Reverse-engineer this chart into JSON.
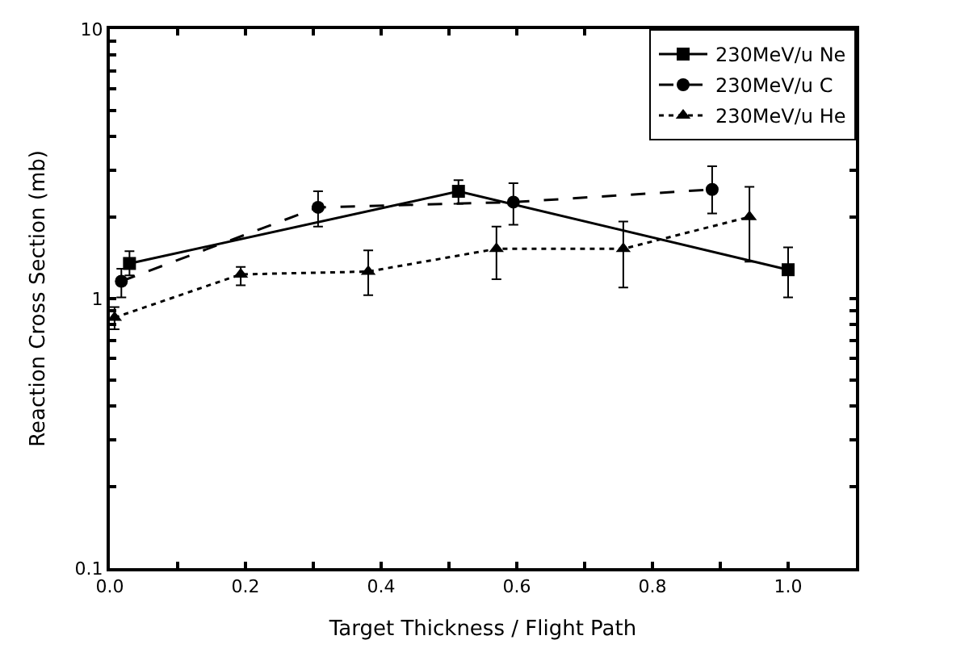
{
  "chart_data": {
    "type": "line",
    "xlabel": "Target Thickness / Flight Path",
    "ylabel": "Reaction Cross Section (mb)",
    "log": "y",
    "legend": "top right",
    "xlim": [
      0,
      1.1
    ],
    "ylim": [
      0.1,
      10
    ],
    "xticks": [
      {
        "value": 0,
        "label": "0.0"
      },
      {
        "value": 0.1,
        "label": null
      },
      {
        "value": 0.2,
        "label": "0.2"
      },
      {
        "value": 0.3,
        "label": null
      },
      {
        "value": 0.4,
        "label": "0.4"
      },
      {
        "value": 0.5,
        "label": null
      },
      {
        "value": 0.6,
        "label": "0.6"
      },
      {
        "value": 0.7,
        "label": null
      },
      {
        "value": 0.8,
        "label": "0.8"
      },
      {
        "value": 0.9,
        "label": null
      },
      {
        "value": 1.0,
        "label": "1.0"
      },
      {
        "value": 1.1,
        "label": null
      }
    ],
    "yticks": [
      0.1,
      {
        "value": 0.2,
        "label": null
      },
      {
        "value": 0.3,
        "label": null
      },
      {
        "value": 0.4,
        "label": null
      },
      {
        "value": 0.5,
        "label": null
      },
      {
        "value": 0.6,
        "label": null
      },
      {
        "value": 0.7,
        "label": null
      },
      {
        "value": 0.8,
        "label": null
      },
      {
        "value": 0.9,
        "label": null
      },
      1,
      {
        "value": 2,
        "label": null
      },
      {
        "value": 3,
        "label": null
      },
      {
        "value": 4,
        "label": null
      },
      {
        "value": 5,
        "label": null
      },
      {
        "value": 6,
        "label": null
      },
      {
        "value": 7,
        "label": null
      },
      {
        "value": 8,
        "label": null
      },
      {
        "value": 9,
        "label": null
      },
      10
    ],
    "series": [
      {
        "name": "230MeV/u Ne",
        "color": "#000000",
        "marker": "square",
        "line_style": "solid",
        "x": [
          0.029,
          0.514,
          1.0
        ],
        "values": [
          1.35,
          2.5,
          1.28
        ],
        "errors": [
          [
            1.22,
            1.5
          ],
          [
            2.25,
            2.75
          ],
          [
            1.01,
            1.55
          ]
        ]
      },
      {
        "name": "230MeV/u C",
        "color": "#000000",
        "marker": "circle",
        "line_style": "dashed",
        "x": [
          0.017,
          0.307,
          0.595,
          0.888
        ],
        "values": [
          1.16,
          2.18,
          2.28,
          2.54
        ],
        "errors": [
          [
            1.01,
            1.29
          ],
          [
            1.85,
            2.5
          ],
          [
            1.88,
            2.68
          ],
          [
            2.07,
            3.1
          ]
        ]
      },
      {
        "name": "230MeV/u He",
        "color": "#000000",
        "marker": "triangle",
        "line_style": "dotted",
        "x": [
          0.007,
          0.193,
          0.381,
          0.57,
          0.757,
          0.943
        ],
        "values": [
          0.85,
          1.23,
          1.26,
          1.53,
          1.53,
          2.01
        ],
        "errors": [
          [
            0.77,
            0.93
          ],
          [
            1.12,
            1.31
          ],
          [
            1.03,
            1.51
          ],
          [
            1.18,
            1.85
          ],
          [
            1.1,
            1.93
          ],
          [
            1.37,
            2.6
          ]
        ]
      }
    ]
  }
}
